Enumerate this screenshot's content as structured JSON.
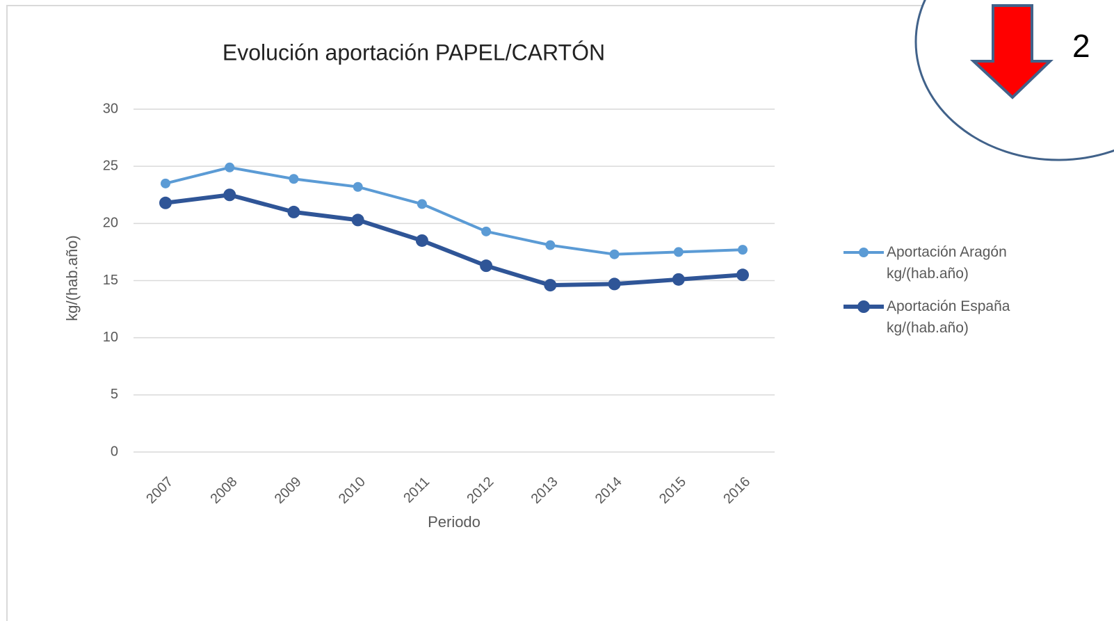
{
  "chart_data": {
    "type": "line",
    "title": "Evolución aportación PAPEL/CARTÓN",
    "xlabel": "Periodo",
    "ylabel": "kg/(hab.año)",
    "categories": [
      "2007",
      "2008",
      "2009",
      "2010",
      "2011",
      "2012",
      "2013",
      "2014",
      "2015",
      "2016"
    ],
    "series": [
      {
        "name": "Aportación Aragón kg/(hab.año)",
        "color": "#5b9bd5",
        "values": [
          23.5,
          24.9,
          23.9,
          23.2,
          21.7,
          19.3,
          18.1,
          17.3,
          17.5,
          17.7
        ]
      },
      {
        "name": "Aportación España kg/(hab.año)",
        "color": "#2f5597",
        "values": [
          21.8,
          22.5,
          21.0,
          20.3,
          18.5,
          16.3,
          14.6,
          14.7,
          15.1,
          15.5
        ]
      }
    ],
    "ylim": [
      0,
      30
    ],
    "yticks": [
      0,
      5,
      10,
      15,
      20,
      25,
      30
    ],
    "grid": true,
    "legend": "right"
  },
  "badge": "2"
}
